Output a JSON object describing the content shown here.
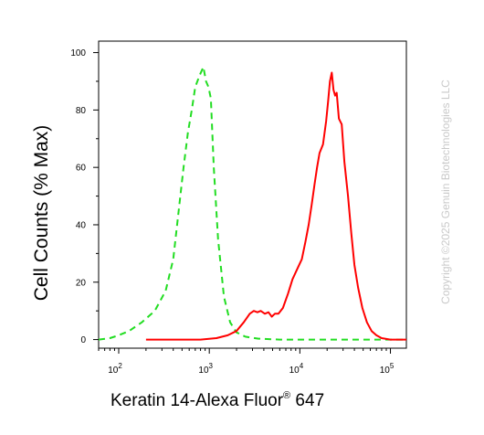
{
  "chart_data": {
    "type": "line",
    "title": "",
    "ylabel": "Cell Counts (% Max)",
    "xlabel_main": "Keratin 14-Alexa Fluor",
    "xlabel_sup": "®",
    "xlabel_tail": " 647",
    "x_scale": "log",
    "xlim": [
      60,
      150000
    ],
    "ylim": [
      -3,
      104
    ],
    "y_ticks": [
      0,
      20,
      40,
      60,
      80,
      100
    ],
    "y_tick_labels": [
      "0",
      "20",
      "40",
      "60",
      "80",
      "100"
    ],
    "x_ticks": [
      100,
      1000,
      10000,
      100000
    ],
    "x_tick_labels": [
      {
        "base": "10",
        "exp": "2"
      },
      {
        "base": "10",
        "exp": "3"
      },
      {
        "base": "10",
        "exp": "4"
      },
      {
        "base": "10",
        "exp": "5"
      }
    ],
    "grid": false,
    "legend": "none",
    "series": [
      {
        "color": "#22dd22",
        "style": "dashed",
        "points": [
          [
            60,
            0
          ],
          [
            80,
            0.5
          ],
          [
            100,
            1.5
          ],
          [
            130,
            3
          ],
          [
            180,
            6
          ],
          [
            250,
            10
          ],
          [
            330,
            17
          ],
          [
            400,
            28
          ],
          [
            460,
            45
          ],
          [
            520,
            60
          ],
          [
            580,
            72
          ],
          [
            640,
            80
          ],
          [
            700,
            88
          ],
          [
            780,
            92
          ],
          [
            860,
            95
          ],
          [
            920,
            90
          ],
          [
            980,
            88
          ],
          [
            1040,
            84
          ],
          [
            1120,
            60
          ],
          [
            1250,
            35
          ],
          [
            1450,
            15
          ],
          [
            1700,
            6
          ],
          [
            2000,
            2.5
          ],
          [
            2500,
            1
          ],
          [
            3500,
            0.3
          ],
          [
            6000,
            0
          ],
          [
            20000,
            0
          ],
          [
            80000,
            0
          ],
          [
            150000,
            0
          ]
        ]
      },
      {
        "color": "#ff0000",
        "style": "solid",
        "points": [
          [
            200,
            0
          ],
          [
            800,
            0
          ],
          [
            1200,
            0.5
          ],
          [
            1600,
            1.5
          ],
          [
            2000,
            3
          ],
          [
            2400,
            6
          ],
          [
            2800,
            9
          ],
          [
            3100,
            10
          ],
          [
            3400,
            9.5
          ],
          [
            3700,
            10
          ],
          [
            4100,
            9
          ],
          [
            4500,
            9.5
          ],
          [
            4900,
            8
          ],
          [
            5300,
            9
          ],
          [
            5800,
            9
          ],
          [
            6500,
            11
          ],
          [
            7400,
            16
          ],
          [
            8300,
            21
          ],
          [
            9500,
            25
          ],
          [
            10500,
            28
          ],
          [
            11500,
            34
          ],
          [
            12500,
            40
          ],
          [
            13500,
            47
          ],
          [
            14500,
            54
          ],
          [
            15500,
            60
          ],
          [
            16500,
            65
          ],
          [
            18000,
            68
          ],
          [
            19500,
            76
          ],
          [
            20500,
            83
          ],
          [
            21500,
            90
          ],
          [
            22500,
            93
          ],
          [
            23500,
            87
          ],
          [
            24500,
            85
          ],
          [
            25500,
            86
          ],
          [
            27000,
            77
          ],
          [
            29000,
            75
          ],
          [
            31000,
            62
          ],
          [
            34000,
            50
          ],
          [
            37000,
            37
          ],
          [
            40000,
            26
          ],
          [
            44000,
            18
          ],
          [
            49000,
            11
          ],
          [
            55000,
            6
          ],
          [
            62000,
            3
          ],
          [
            70000,
            1.5
          ],
          [
            80000,
            0.5
          ],
          [
            100000,
            0
          ],
          [
            150000,
            0
          ]
        ]
      }
    ]
  },
  "watermark": "Copyright ©2025 Genuin Biotechnologies LLC"
}
